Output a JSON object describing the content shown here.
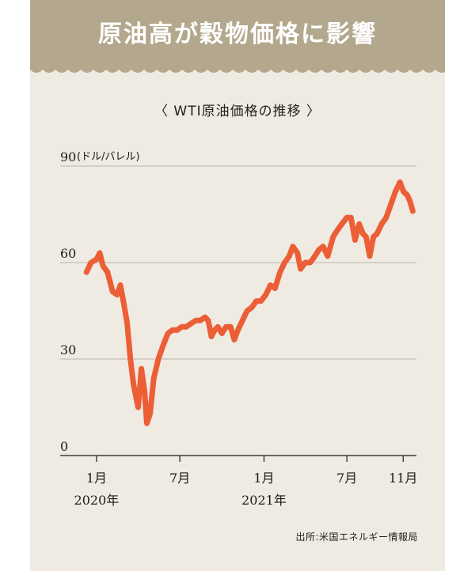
{
  "header": {
    "title": "原油高が穀物価格に影響"
  },
  "chart_data": {
    "type": "line",
    "title": "〈 WTI原油価格の推移 〉",
    "ylabel": "(ドル/バレル)",
    "ylim": [
      0,
      90
    ],
    "yticks": [
      0,
      30,
      60,
      90
    ],
    "x_range": [
      "2019-12-01",
      "2021-11-30"
    ],
    "x_ticks": [
      {
        "date": "2020-01-01",
        "label": "1月",
        "year_label": "2020年"
      },
      {
        "date": "2020-07-01",
        "label": "7月",
        "year_label": ""
      },
      {
        "date": "2021-01-01",
        "label": "1月",
        "year_label": "2021年"
      },
      {
        "date": "2021-07-01",
        "label": "7月",
        "year_label": ""
      },
      {
        "date": "2021-11-01",
        "label": "11月",
        "year_label": ""
      }
    ],
    "series": [
      {
        "color": "#ec5e35",
        "points": [
          [
            "2019-12-10",
            57
          ],
          [
            "2019-12-20",
            60
          ],
          [
            "2020-01-01",
            61
          ],
          [
            "2020-01-08",
            63
          ],
          [
            "2020-01-15",
            59
          ],
          [
            "2020-01-25",
            57
          ],
          [
            "2020-02-05",
            51
          ],
          [
            "2020-02-15",
            50
          ],
          [
            "2020-02-22",
            53
          ],
          [
            "2020-03-01",
            47
          ],
          [
            "2020-03-08",
            41
          ],
          [
            "2020-03-15",
            30
          ],
          [
            "2020-03-22",
            22
          ],
          [
            "2020-04-01",
            15
          ],
          [
            "2020-04-08",
            27
          ],
          [
            "2020-04-15",
            20
          ],
          [
            "2020-04-20",
            10
          ],
          [
            "2020-04-27",
            13
          ],
          [
            "2020-05-05",
            24
          ],
          [
            "2020-05-15",
            30
          ],
          [
            "2020-05-25",
            34
          ],
          [
            "2020-06-05",
            38
          ],
          [
            "2020-06-15",
            39
          ],
          [
            "2020-06-25",
            39
          ],
          [
            "2020-07-05",
            40
          ],
          [
            "2020-07-15",
            40
          ],
          [
            "2020-07-25",
            41
          ],
          [
            "2020-08-05",
            42
          ],
          [
            "2020-08-15",
            42
          ],
          [
            "2020-08-25",
            43
          ],
          [
            "2020-09-01",
            42
          ],
          [
            "2020-09-08",
            37
          ],
          [
            "2020-09-15",
            39
          ],
          [
            "2020-09-22",
            40
          ],
          [
            "2020-10-01",
            38
          ],
          [
            "2020-10-10",
            40
          ],
          [
            "2020-10-20",
            40
          ],
          [
            "2020-10-28",
            36
          ],
          [
            "2020-11-05",
            39
          ],
          [
            "2020-11-15",
            42
          ],
          [
            "2020-11-25",
            45
          ],
          [
            "2020-12-05",
            46
          ],
          [
            "2020-12-15",
            48
          ],
          [
            "2020-12-25",
            48
          ],
          [
            "2021-01-05",
            50
          ],
          [
            "2021-01-15",
            53
          ],
          [
            "2021-01-25",
            52
          ],
          [
            "2021-02-05",
            57
          ],
          [
            "2021-02-15",
            60
          ],
          [
            "2021-02-25",
            62
          ],
          [
            "2021-03-05",
            65
          ],
          [
            "2021-03-15",
            63
          ],
          [
            "2021-03-22",
            58
          ],
          [
            "2021-04-01",
            60
          ],
          [
            "2021-04-12",
            60
          ],
          [
            "2021-04-22",
            62
          ],
          [
            "2021-05-01",
            64
          ],
          [
            "2021-05-10",
            65
          ],
          [
            "2021-05-20",
            62
          ],
          [
            "2021-06-01",
            68
          ],
          [
            "2021-06-10",
            70
          ],
          [
            "2021-06-20",
            72
          ],
          [
            "2021-07-01",
            74
          ],
          [
            "2021-07-10",
            74
          ],
          [
            "2021-07-19",
            67
          ],
          [
            "2021-07-28",
            72
          ],
          [
            "2021-08-05",
            69
          ],
          [
            "2021-08-12",
            68
          ],
          [
            "2021-08-20",
            62
          ],
          [
            "2021-08-28",
            68
          ],
          [
            "2021-09-05",
            69
          ],
          [
            "2021-09-15",
            72
          ],
          [
            "2021-09-25",
            74
          ],
          [
            "2021-10-05",
            78
          ],
          [
            "2021-10-15",
            82
          ],
          [
            "2021-10-25",
            85
          ],
          [
            "2021-11-02",
            82
          ],
          [
            "2021-11-10",
            81
          ],
          [
            "2021-11-16",
            79
          ],
          [
            "2021-11-22",
            76
          ]
        ]
      }
    ]
  },
  "footer": {
    "source": "出所:米国エネルギー情報局"
  }
}
